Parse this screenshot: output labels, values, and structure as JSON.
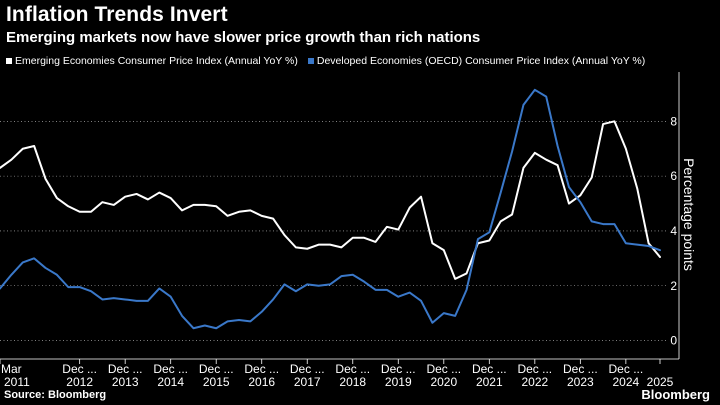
{
  "title": "Inflation Trends Invert",
  "subtitle": "Emerging markets now have slower price growth than rich nations",
  "source": "Source: Bloomberg",
  "brand": "Bloomberg",
  "colors": {
    "background": "#000000",
    "emerging": "#ffffff",
    "developed": "#3a78c9",
    "grid": "#ffffff"
  },
  "chart_data": {
    "type": "line",
    "ylabel": "Percentage points",
    "ylim": [
      -0.6,
      9.8
    ],
    "yticks": [
      0,
      2,
      4,
      6,
      8
    ],
    "grid": true,
    "legend_position": "top-left",
    "x": [
      "Mar 2011",
      "Jun 2011",
      "Sep 2011",
      "Dec 2011",
      "Mar 2012",
      "Jun 2012",
      "Sep 2012",
      "Dec 2012",
      "Mar 2013",
      "Jun 2013",
      "Sep 2013",
      "Dec 2013",
      "Mar 2014",
      "Jun 2014",
      "Sep 2014",
      "Dec 2014",
      "Mar 2015",
      "Jun 2015",
      "Sep 2015",
      "Dec 2015",
      "Mar 2016",
      "Jun 2016",
      "Sep 2016",
      "Dec 2016",
      "Mar 2017",
      "Jun 2017",
      "Sep 2017",
      "Dec 2017",
      "Mar 2018",
      "Jun 2018",
      "Sep 2018",
      "Dec 2018",
      "Mar 2019",
      "Jun 2019",
      "Sep 2019",
      "Dec 2019",
      "Mar 2020",
      "Jun 2020",
      "Sep 2020",
      "Dec 2020",
      "Mar 2021",
      "Jun 2021",
      "Sep 2021",
      "Dec 2021",
      "Mar 2022",
      "Jun 2022",
      "Sep 2022",
      "Dec 2022",
      "Mar 2023",
      "Jun 2023",
      "Sep 2023",
      "Dec 2023",
      "Mar 2024",
      "Jun 2024",
      "Sep 2024",
      "Dec 2024",
      "Mar 2025",
      "Jun 2025",
      "Sep 2025"
    ],
    "series": [
      {
        "name": "Emerging Economies Consumer Price Index (Annual YoY %)",
        "color": "#ffffff",
        "values": [
          6.3,
          6.6,
          7.0,
          7.1,
          5.9,
          5.2,
          4.9,
          4.7,
          4.7,
          5.05,
          4.95,
          5.25,
          5.35,
          5.15,
          5.4,
          5.2,
          4.75,
          4.95,
          4.95,
          4.9,
          4.55,
          4.7,
          4.75,
          4.55,
          4.45,
          3.85,
          3.4,
          3.35,
          3.5,
          3.5,
          3.4,
          3.75,
          3.75,
          3.6,
          4.15,
          4.05,
          4.85,
          5.25,
          3.55,
          3.3,
          2.25,
          2.45,
          3.55,
          3.65,
          4.35,
          4.6,
          6.3,
          6.85,
          6.6,
          6.4,
          5.0,
          5.3,
          5.95,
          7.9,
          8.0,
          7.0,
          5.55,
          3.55,
          3.05
        ]
      },
      {
        "name": "Developed Economies (OECD) Consumer Price Index (Annual YoY %)",
        "color": "#3a78c9",
        "values": [
          1.9,
          2.4,
          2.85,
          3.0,
          2.65,
          2.4,
          1.95,
          1.95,
          1.8,
          1.5,
          1.55,
          1.5,
          1.45,
          1.45,
          1.9,
          1.6,
          0.9,
          0.45,
          0.55,
          0.45,
          0.7,
          0.75,
          0.7,
          1.05,
          1.5,
          2.05,
          1.8,
          2.05,
          2.0,
          2.05,
          2.35,
          2.4,
          2.15,
          1.85,
          1.85,
          1.6,
          1.75,
          1.45,
          0.65,
          1.0,
          0.9,
          1.85,
          3.7,
          3.95,
          5.4,
          6.9,
          8.6,
          9.15,
          8.9,
          7.1,
          5.6,
          5.05,
          4.35,
          4.25,
          4.25,
          3.55,
          3.5,
          3.45,
          3.3
        ]
      }
    ],
    "x_ticks": [
      {
        "label": "Mar",
        "year": "2011",
        "index": 0
      },
      {
        "label": "Dec ...",
        "year": "2012",
        "index": 7
      },
      {
        "label": "Dec ...",
        "year": "2013",
        "index": 11
      },
      {
        "label": "Dec ...",
        "year": "2014",
        "index": 15
      },
      {
        "label": "Dec ...",
        "year": "2015",
        "index": 19
      },
      {
        "label": "Dec ...",
        "year": "2016",
        "index": 23
      },
      {
        "label": "Dec ...",
        "year": "2017",
        "index": 27
      },
      {
        "label": "Dec ...",
        "year": "2018",
        "index": 31
      },
      {
        "label": "Dec ...",
        "year": "2019",
        "index": 35
      },
      {
        "label": "Dec ...",
        "year": "2020",
        "index": 39
      },
      {
        "label": "Dec ...",
        "year": "2021",
        "index": 43
      },
      {
        "label": "Dec ...",
        "year": "2022",
        "index": 47
      },
      {
        "label": "Dec ...",
        "year": "2023",
        "index": 51
      },
      {
        "label": "Dec ...",
        "year": "2024",
        "index": 55
      },
      {
        "label": "",
        "year": "2025",
        "index": 58
      }
    ]
  }
}
